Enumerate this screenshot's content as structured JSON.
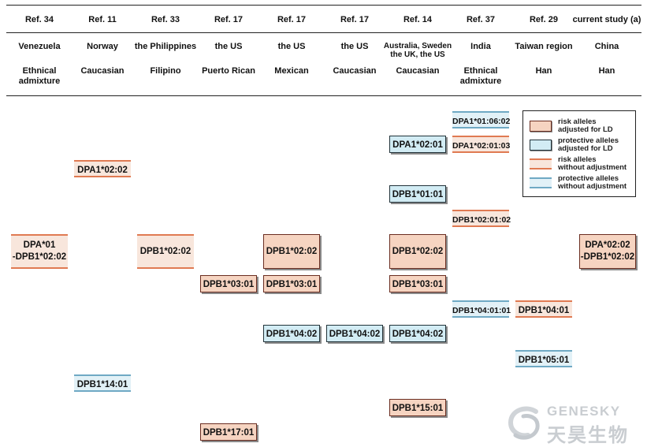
{
  "columns": [
    {
      "ref": "Ref. 34",
      "region": "Venezuela",
      "ethnicity": "Ethnical admixture"
    },
    {
      "ref": "Ref. 11",
      "region": "Norway",
      "ethnicity": "Caucasian"
    },
    {
      "ref": "Ref. 33",
      "region": "the Philippines",
      "ethnicity": "Filipino"
    },
    {
      "ref": "Ref. 17",
      "region": "the US",
      "ethnicity": "Puerto Rican"
    },
    {
      "ref": "Ref. 17",
      "region": "the US",
      "ethnicity": "Mexican"
    },
    {
      "ref": "Ref. 17",
      "region": "the US",
      "ethnicity": "Caucasian"
    },
    {
      "ref": "Ref. 14",
      "region": "Australia, Sweden the UK, the US",
      "ethnicity": "Caucasian"
    },
    {
      "ref": "Ref. 37",
      "region": "India",
      "ethnicity": "Ethnical admixture"
    },
    {
      "ref": "Ref. 29",
      "region": "Taiwan region",
      "ethnicity": "Han"
    },
    {
      "ref": "current study (a)",
      "region": "China",
      "ethnicity": "Han"
    }
  ],
  "alleles": {
    "c0_dpa01": {
      "line1": "DPA*01",
      "line2": "-DPB1*02:02"
    },
    "c1_dpa10202": "DPA1*02:02",
    "c1_dpb11401": "DPB1*14:01",
    "c2_dpb10202": "DPB1*02:02",
    "c3_dpb10301": "DPB1*03:01",
    "c3_dpb11701": "DPB1*17:01",
    "c4_dpb10202": "DPB1*02:02",
    "c4_dpb10301": "DPB1*03:01",
    "c4_dpb10402": "DPB1*04:02",
    "c5_dpb10402": "DPB1*04:02",
    "c6_dpa10201": "DPA1*02:01",
    "c6_dpb10101": "DPB1*01:01",
    "c6_dpb10202": "DPB1*02:02",
    "c6_dpb10301": "DPB1*03:01",
    "c6_dpb10402": "DPB1*04:02",
    "c6_dpb11501": "DPB1*15:01",
    "c7_dpa1010602": "DPA1*01:06:02",
    "c7_dpa1020103": "DPA1*02:01:03",
    "c7_dpb1020102": "DPB1*02:01:02",
    "c7_dpb1040101": "DPB1*04:01:01",
    "c8_dpb10401": "DPB1*04:01",
    "c8_dpb10501": "DPB1*05:01",
    "c9_dpa0202": {
      "line1": "DPA*02:02",
      "line2": "-DPB1*02:02"
    }
  },
  "legend": [
    {
      "line1": "risk alleles",
      "line2": "adjusted for LD",
      "color": "#f6d4c1"
    },
    {
      "line1": "protective alleles",
      "line2": "adjusted for LD",
      "color": "#d2ecf4"
    },
    {
      "line1": "risk alleles",
      "line2": "without adjustment",
      "color": "#e07a52"
    },
    {
      "line1": "protective alleles",
      "line2": "without adjustment",
      "color": "#6fa9c4"
    }
  ],
  "watermark": {
    "en": "GENESKY",
    "cn": "天昊生物"
  }
}
